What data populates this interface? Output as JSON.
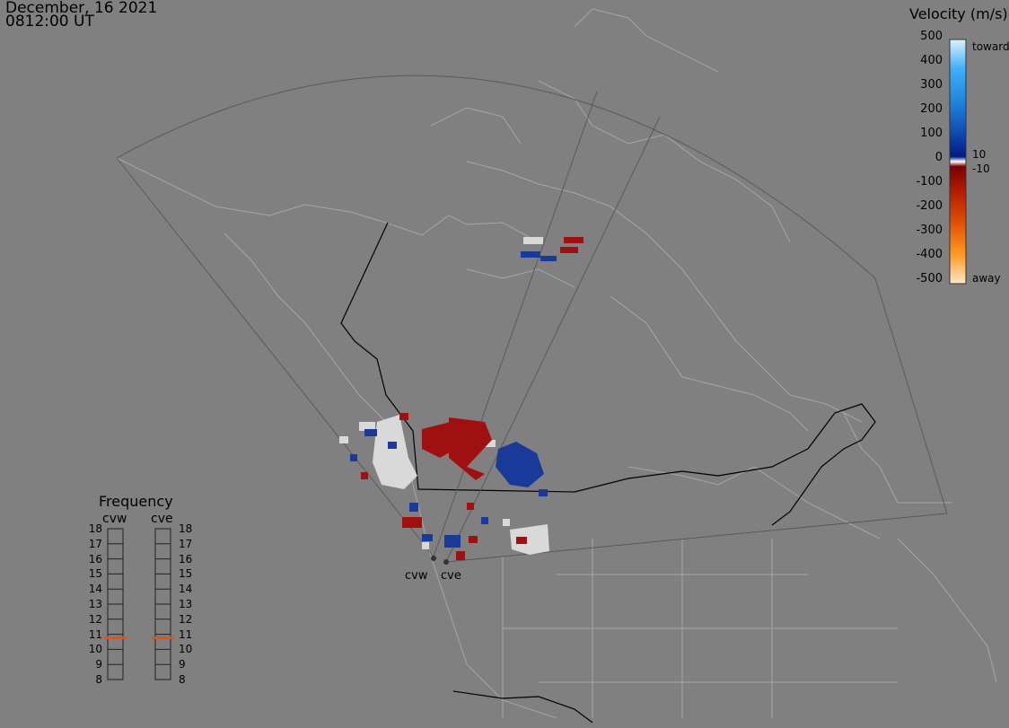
{
  "header": {
    "date": "December, 16 2021",
    "time": "0812:00 UT"
  },
  "colorbar": {
    "title": "Velocity (m/s)",
    "ticks": [
      "500",
      "400",
      "300",
      "200",
      "100",
      "0",
      "-100",
      "-200",
      "-300",
      "-400",
      "-500"
    ],
    "label_toward": "toward",
    "label_away": "away",
    "label_pos_threshold": "10",
    "label_neg_threshold": "-10"
  },
  "frequency": {
    "title": "Frequency",
    "radars": [
      "cvw",
      "cve"
    ],
    "scale": [
      "18",
      "17",
      "16",
      "15",
      "14",
      "13",
      "12",
      "11",
      "10",
      "9",
      "8"
    ],
    "values_mhz": [
      11,
      11
    ]
  },
  "map": {
    "radar_labels": [
      "cvw",
      "cve"
    ]
  },
  "colors": {
    "background": "#808080",
    "toward": "#1a4fb3",
    "away": "#a01010",
    "ground_scatter": "#d9d9d9",
    "freq_marker": "#e8501a"
  }
}
